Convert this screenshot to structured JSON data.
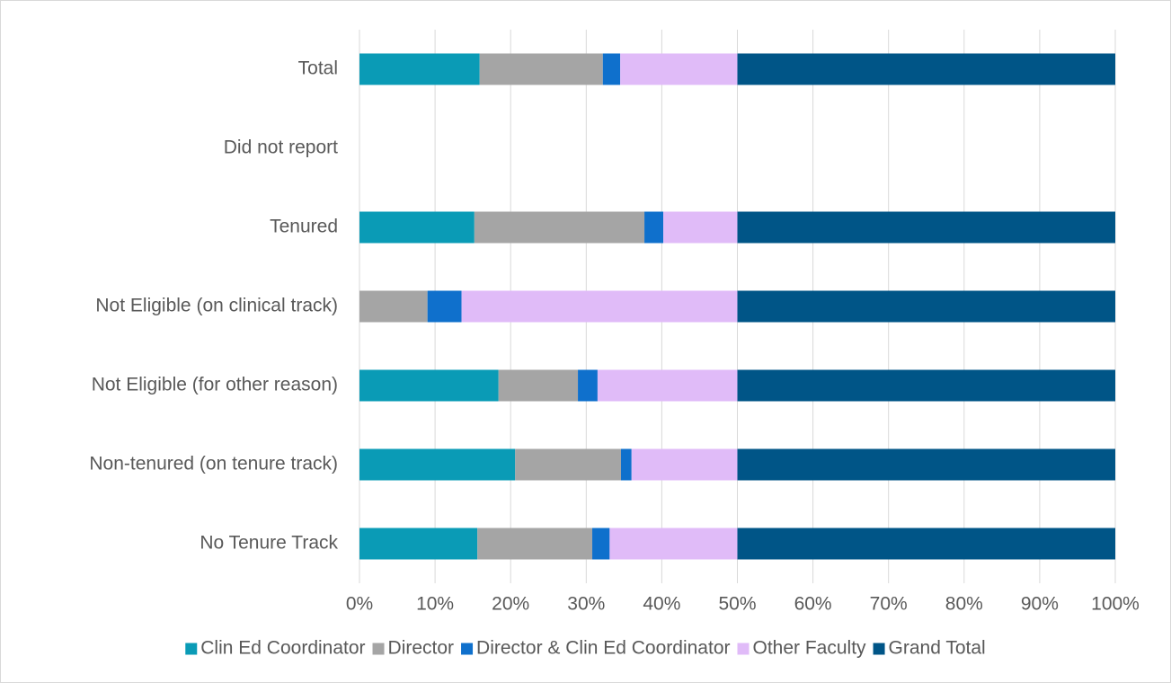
{
  "chart_data": {
    "type": "stacked-bar-horizontal",
    "categories": [
      "Total",
      "Did not report",
      "Tenured",
      "Not Eligible (on clinical track)",
      "Not Eligible (for other reason)",
      "Non-tenured (on tenure track)",
      "No Tenure Track"
    ],
    "series": [
      {
        "name": "Clin Ed Coordinator",
        "color": "#0a9bb6",
        "values": [
          15.9,
          0,
          15.2,
          0,
          18.4,
          20.6,
          15.6
        ]
      },
      {
        "name": "Director",
        "color": "#a5a5a5",
        "values": [
          16.3,
          0,
          22.5,
          9.0,
          10.5,
          14.0,
          15.2
        ]
      },
      {
        "name": "Director & Clin Ed Coordinator",
        "color": "#0f70cc",
        "values": [
          2.3,
          0,
          2.5,
          4.5,
          2.6,
          1.4,
          2.3
        ]
      },
      {
        "name": "Other Faculty",
        "color": "#e0bbf8",
        "values": [
          15.5,
          0,
          9.8,
          36.5,
          18.5,
          14.0,
          16.9
        ]
      },
      {
        "name": "Grand Total",
        "color": "#005587",
        "values": [
          50,
          0,
          50,
          50,
          50,
          50,
          50
        ]
      }
    ],
    "xlim": [
      0,
      100
    ],
    "xticks": [
      {
        "value": 0,
        "label": "0%"
      },
      {
        "value": 10,
        "label": "10%"
      },
      {
        "value": 20,
        "label": "20%"
      },
      {
        "value": 30,
        "label": "30%"
      },
      {
        "value": 40,
        "label": "40%"
      },
      {
        "value": 50,
        "label": "50%"
      },
      {
        "value": 60,
        "label": "60%"
      },
      {
        "value": 70,
        "label": "70%"
      },
      {
        "value": 80,
        "label": "80%"
      },
      {
        "value": 90,
        "label": "90%"
      },
      {
        "value": 100,
        "label": "100%"
      }
    ],
    "grid": true,
    "legend": "bottom"
  }
}
